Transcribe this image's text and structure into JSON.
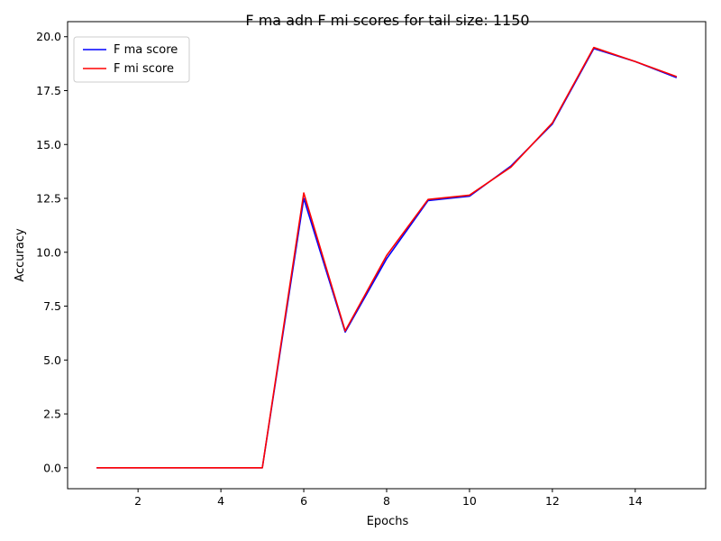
{
  "chart_data": {
    "type": "line",
    "title": "F ma adn F mi scores for tail size: 1150",
    "xlabel": "Epochs",
    "ylabel": "Accuracy",
    "xlim": [
      0.3,
      15.7
    ],
    "ylim": [
      -0.97,
      20.7
    ],
    "x_ticks": [
      2,
      4,
      6,
      8,
      10,
      12,
      14
    ],
    "y_ticks": [
      0.0,
      2.5,
      5.0,
      7.5,
      10.0,
      12.5,
      15.0,
      17.5,
      20.0
    ],
    "y_tick_labels": [
      "0.0",
      "2.5",
      "5.0",
      "7.5",
      "10.0",
      "12.5",
      "15.0",
      "17.5",
      "20.0"
    ],
    "x": [
      1,
      2,
      3,
      4,
      5,
      6,
      7,
      8,
      9,
      10,
      11,
      12,
      13,
      14,
      15
    ],
    "series": [
      {
        "name": "F ma score",
        "color": "#0000ff",
        "values": [
          0,
          0,
          0,
          0,
          0,
          12.5,
          6.3,
          9.7,
          12.4,
          12.6,
          14.0,
          15.95,
          19.45,
          18.85,
          18.1
        ]
      },
      {
        "name": "F mi score",
        "color": "#ff0000",
        "values": [
          0,
          0,
          0,
          0,
          0,
          12.75,
          6.35,
          9.85,
          12.45,
          12.65,
          13.95,
          16.0,
          19.5,
          18.85,
          18.15
        ]
      }
    ],
    "legend_position": "upper-left",
    "grid": false
  }
}
